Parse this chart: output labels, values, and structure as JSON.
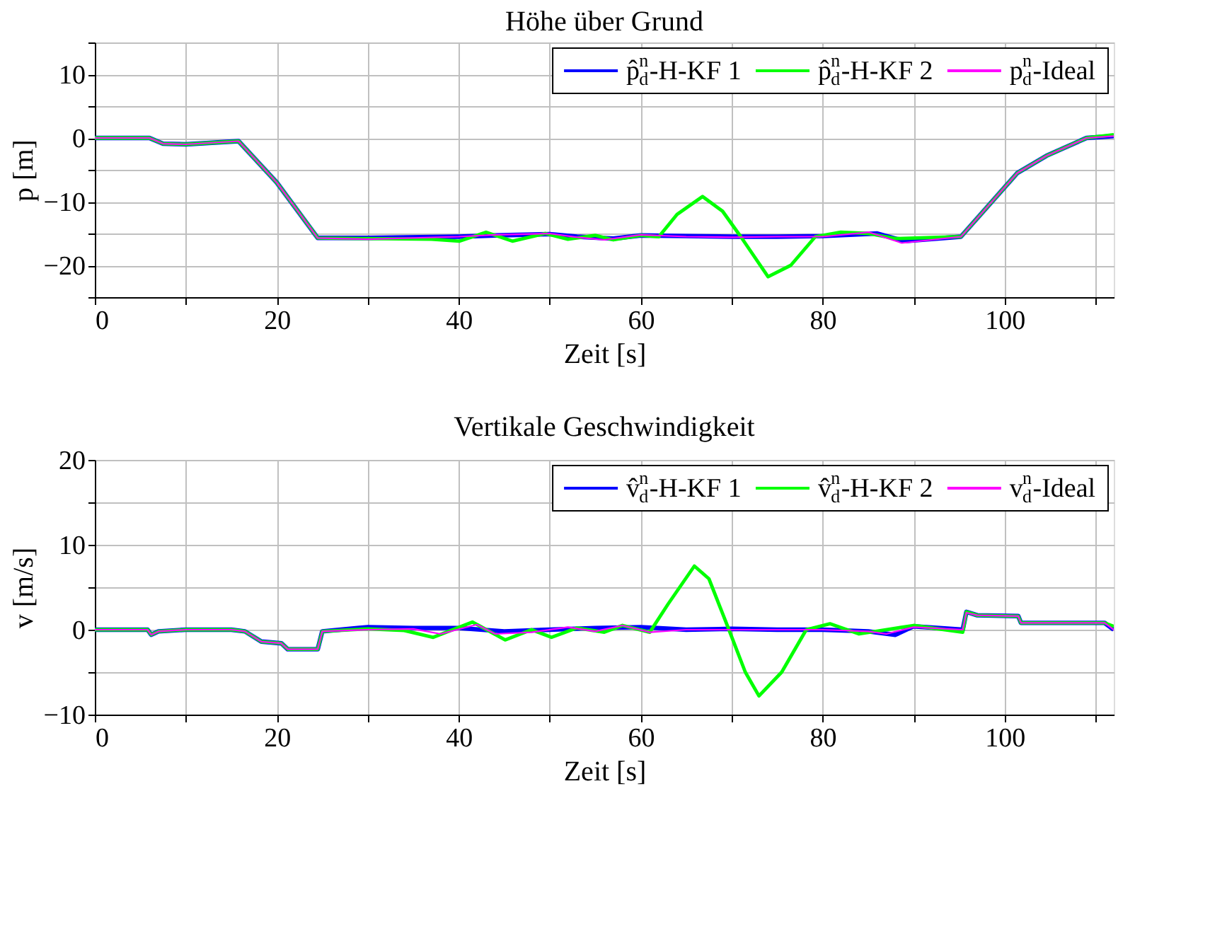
{
  "chart_data": [
    {
      "type": "line",
      "title": "Höhe über Grund",
      "xlabel": "Zeit [s]",
      "ylabel": "p [m]",
      "xlim": [
        0,
        112
      ],
      "ylim": [
        -25,
        15
      ],
      "xticks": [
        0,
        {
          "value": 10,
          "label": null
        },
        20,
        {
          "value": 30,
          "label": null
        },
        40,
        {
          "value": 50,
          "label": null
        },
        60,
        {
          "value": 70,
          "label": null
        },
        80,
        {
          "value": 90,
          "label": null
        },
        100,
        {
          "value": 110,
          "label": null
        }
      ],
      "yticks": [
        {
          "value": -25,
          "label": null
        },
        -20,
        {
          "value": -15,
          "label": null
        },
        -10,
        {
          "value": -5,
          "label": null
        },
        0,
        {
          "value": 5,
          "label": null
        },
        10,
        {
          "value": 15,
          "label": null
        }
      ],
      "grid": true,
      "legend": "top right",
      "line_style": "solid",
      "marker": "none",
      "series": [
        {
          "name": "p̂$^{n}$$_{d}$-H-KF 1",
          "color": "#0000ff",
          "x": [
            0,
            6,
            7.5,
            10,
            15.8,
            20,
            24.5,
            30,
            40,
            44,
            50,
            53,
            57,
            60,
            65,
            70,
            75,
            80,
            86,
            89,
            95.2,
            101.4,
            104.6,
            109,
            112
          ],
          "values": [
            0,
            0,
            -0.9,
            -1,
            -0.5,
            -7,
            -15.7,
            -15.7,
            -15.5,
            -15.3,
            -15.1,
            -15.5,
            -15.8,
            -15.3,
            -15.4,
            -15.5,
            -15.5,
            -15.4,
            -15,
            -16.2,
            -15.5,
            -5.5,
            -2.8,
            0,
            0.3
          ]
        },
        {
          "name": "p̂$^{n}$$_{d}$-H-KF 2",
          "color": "#00ff00",
          "x": [
            0,
            6,
            7.5,
            10,
            15.8,
            20,
            24.5,
            30,
            37,
            40.1,
            43,
            45.9,
            49.5,
            52,
            55,
            57,
            60,
            62,
            64,
            66.8,
            69,
            71,
            74,
            76.5,
            79.2,
            82,
            85,
            88,
            95.2,
            101.4,
            104.6,
            109,
            112
          ],
          "values": [
            0,
            0,
            -0.9,
            -1,
            -0.5,
            -7,
            -15.7,
            -15.8,
            -15.9,
            -16.2,
            -14.8,
            -16.2,
            -15,
            -15.9,
            -15.3,
            -16,
            -15.3,
            -15.5,
            -12,
            -9.2,
            -11.5,
            -15.5,
            -21.8,
            -20,
            -15.5,
            -14.8,
            -15,
            -15.8,
            -15.5,
            -5.5,
            -2.8,
            0,
            0.5
          ]
        },
        {
          "name": "p$^{n}$$_{d}$-Ideal",
          "color": "#ff00ff",
          "x": [
            0,
            6,
            7.5,
            10,
            15.8,
            20,
            24.5,
            30,
            40,
            44,
            50,
            53,
            56,
            60,
            65,
            70,
            75,
            80,
            85.1,
            88.7,
            95.2,
            101.4,
            104.6,
            109,
            112
          ],
          "values": [
            0,
            0,
            -0.9,
            -1,
            -0.5,
            -7,
            -15.7,
            -15.9,
            -15.5,
            -15.2,
            -15,
            -15.6,
            -16,
            -15.2,
            -15.5,
            -15.6,
            -15.5,
            -15.5,
            -14.8,
            -16.5,
            -15.5,
            -5.5,
            -2.8,
            0,
            0.3
          ]
        }
      ]
    },
    {
      "type": "line",
      "title": "Vertikale Geschwindigkeit",
      "xlabel": "Zeit [s]",
      "ylabel": "v [m/s]",
      "xlim": [
        0,
        112
      ],
      "ylim": [
        -10,
        20
      ],
      "xticks": [
        0,
        {
          "value": 10,
          "label": null
        },
        20,
        {
          "value": 30,
          "label": null
        },
        40,
        {
          "value": 50,
          "label": null
        },
        60,
        {
          "value": 70,
          "label": null
        },
        80,
        {
          "value": 90,
          "label": null
        },
        100,
        {
          "value": 110,
          "label": null
        }
      ],
      "yticks": [
        -10,
        {
          "value": -5,
          "label": null
        },
        0,
        {
          "value": 5,
          "label": null
        },
        10,
        {
          "value": 15,
          "label": null
        },
        20
      ],
      "grid": true,
      "legend": "top right",
      "line_style": "solid",
      "marker": "none",
      "series": [
        {
          "name": "v̂$^{n}$$_{d}$-H-KF 1",
          "color": "#0000ff",
          "x": [
            0,
            5.8,
            6.2,
            7,
            10,
            15,
            16.5,
            18.3,
            20.5,
            21.2,
            24.5,
            25,
            30,
            35,
            40,
            45,
            50,
            55,
            60,
            65,
            70,
            75,
            80,
            85,
            88,
            90,
            95.4,
            95.8,
            97,
            101.5,
            101.8,
            111,
            112
          ],
          "values": [
            0,
            0,
            -0.6,
            -0.2,
            0,
            0,
            -0.2,
            -1.4,
            -1.6,
            -2.3,
            -2.3,
            -0.2,
            0.3,
            0.2,
            0.2,
            -0.2,
            0,
            0.2,
            0.3,
            0,
            0.1,
            0,
            0,
            -0.2,
            -0.6,
            0.4,
            0,
            2.1,
            1.7,
            1.6,
            0.8,
            0.8,
            0
          ]
        },
        {
          "name": "v̂$^{n}$$_{d}$-H-KF 2",
          "color": "#00ff00",
          "x": [
            0,
            5.8,
            6.2,
            7,
            10,
            15,
            16.5,
            18.3,
            20.5,
            21.2,
            24.5,
            25,
            30,
            34,
            37.2,
            41.5,
            45.1,
            48,
            50.2,
            53,
            56,
            58,
            61,
            63,
            65.9,
            67.5,
            69.7,
            71.5,
            73,
            75.5,
            78.2,
            80.8,
            84,
            90,
            95.4,
            95.8,
            97,
            101.5,
            101.8,
            111,
            112
          ],
          "values": [
            0,
            0,
            -0.6,
            -0.2,
            0,
            0,
            -0.2,
            -1.4,
            -1.6,
            -2.3,
            -2.3,
            -0.2,
            0.1,
            -0.1,
            -0.9,
            0.9,
            -1.2,
            0,
            -0.9,
            0.2,
            -0.3,
            0.5,
            -0.3,
            3,
            7.5,
            6,
            0,
            -5,
            -7.8,
            -5,
            0,
            0.7,
            -0.5,
            0.5,
            -0.3,
            2.1,
            1.7,
            1.6,
            0.8,
            0.8,
            0.4
          ]
        },
        {
          "name": "v$^{n}$$_{d}$-Ideal",
          "color": "#ff00ff",
          "x": [
            0,
            5.8,
            6.2,
            7,
            10,
            15,
            16.5,
            18.3,
            20.5,
            21.2,
            24.5,
            25,
            30,
            35,
            38,
            42,
            44,
            48,
            52,
            55,
            58,
            61,
            65,
            70,
            75,
            80,
            85,
            87,
            90,
            95.4,
            95.8,
            97,
            101.5,
            101.8,
            111,
            112
          ],
          "values": [
            0,
            0,
            -0.6,
            -0.2,
            0,
            0,
            -0.2,
            -1.4,
            -1.6,
            -2.3,
            -2.3,
            -0.2,
            0,
            0.1,
            -0.5,
            0.6,
            -0.5,
            -0.3,
            0.3,
            -0.2,
            0.5,
            -0.3,
            0,
            0,
            0,
            0,
            -0.2,
            -0.5,
            0.3,
            0,
            2,
            1.7,
            1.6,
            0.8,
            0.8,
            0
          ]
        }
      ]
    }
  ]
}
